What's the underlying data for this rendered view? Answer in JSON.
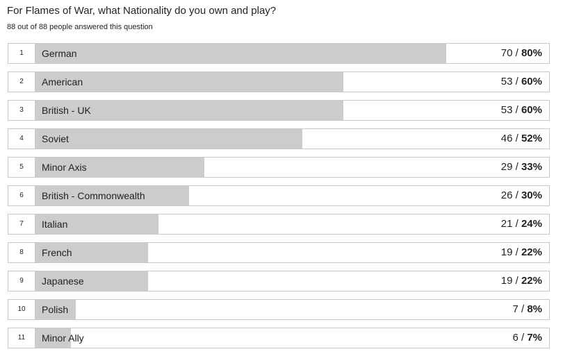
{
  "survey": {
    "question": "For Flames of War, what Nationality do you own and play?",
    "answered_text": "88 out of 88 people answered this question"
  },
  "chart_data": {
    "type": "bar",
    "orientation": "horizontal",
    "categories": [
      "German",
      "American",
      "British - UK",
      "Soviet",
      "Minor Axis",
      "British - Commonwealth",
      "Italian",
      "French",
      "Japanese",
      "Polish",
      "Minor Ally"
    ],
    "ranks": [
      "1",
      "2",
      "3",
      "4",
      "5",
      "6",
      "7",
      "8",
      "9",
      "10",
      "11"
    ],
    "counts": [
      "70",
      "53",
      "53",
      "46",
      "29",
      "26",
      "21",
      "19",
      "19",
      "7",
      "6"
    ],
    "percent_labels": [
      "80%",
      "60%",
      "60%",
      "52%",
      "33%",
      "30%",
      "24%",
      "22%",
      "22%",
      "8%",
      "7%"
    ],
    "values": [
      80,
      60,
      60,
      52,
      33,
      30,
      24,
      22,
      22,
      8,
      7
    ],
    "xlim": [
      0,
      100
    ],
    "bar_color": "#cccccc"
  }
}
